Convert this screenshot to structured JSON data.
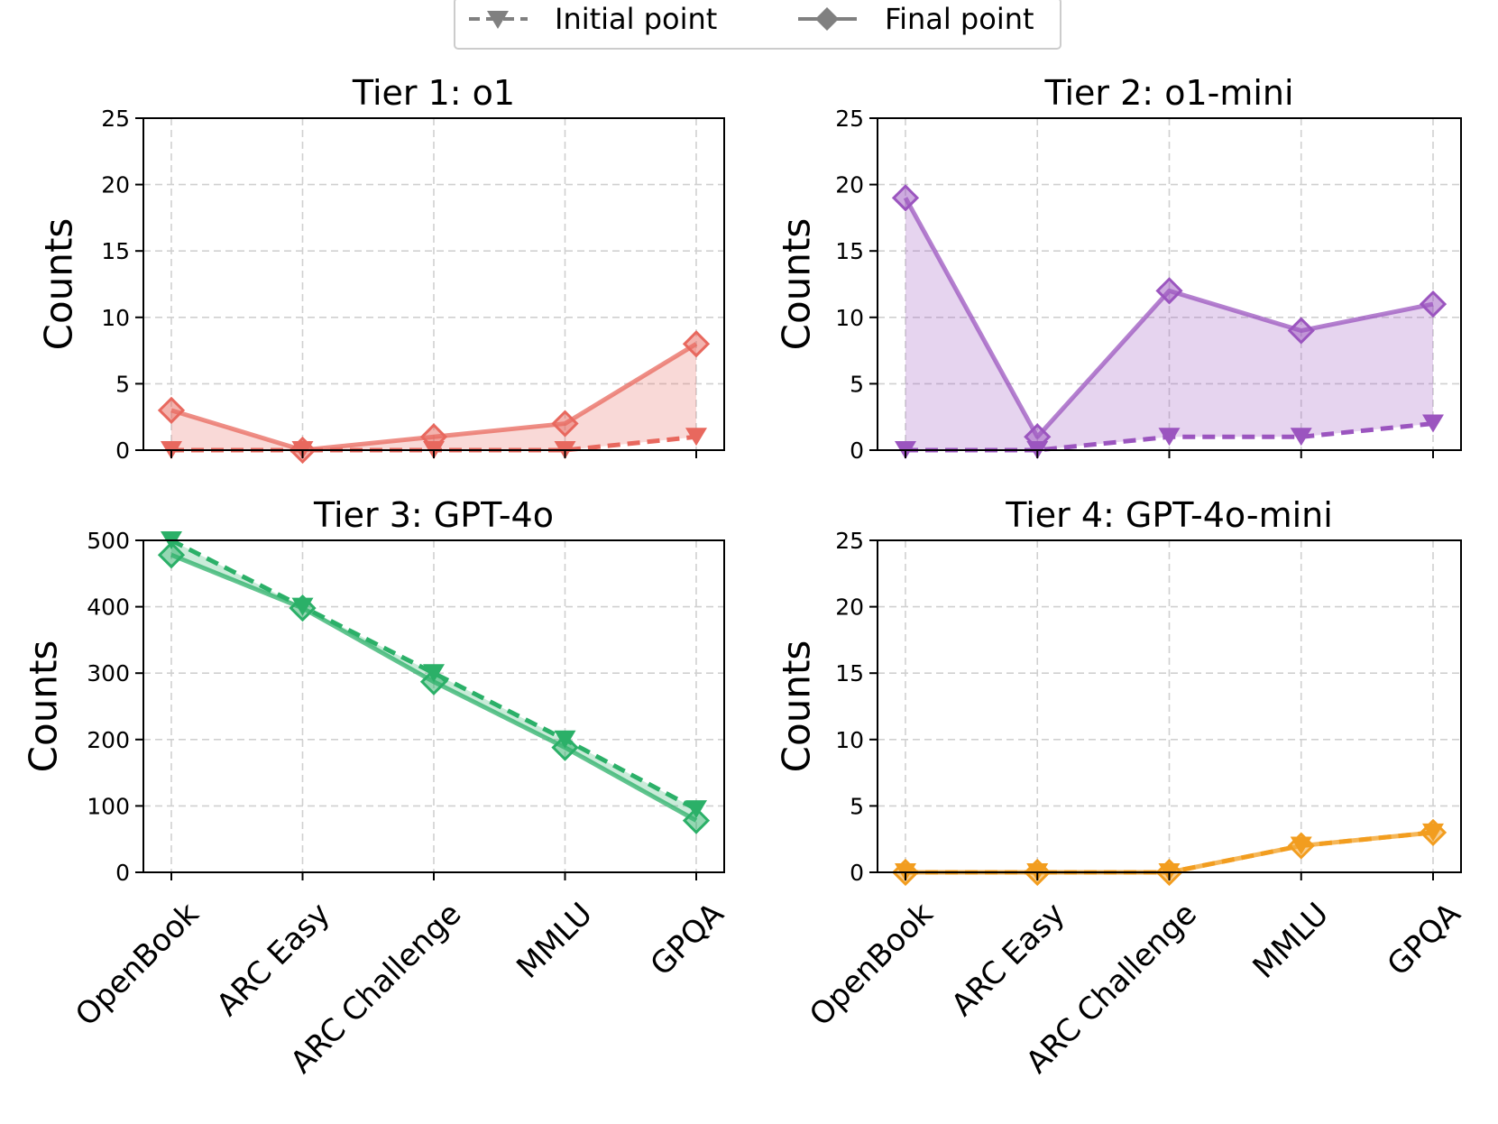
{
  "legend": {
    "placement": "top-center",
    "entries": [
      {
        "label": "Initial point",
        "line_style": "dashed",
        "marker": "triangle-down"
      },
      {
        "label": "Final point",
        "line_style": "solid",
        "marker": "diamond"
      }
    ],
    "color": "#808080"
  },
  "chart_data": [
    {
      "type": "line",
      "title": "Tier 1: o1",
      "xlabel": "",
      "ylabel": "Counts",
      "categories": [
        "OpenBook",
        "ARC Easy",
        "ARC Challenge",
        "MMLU",
        "GPQA"
      ],
      "ylim": [
        0,
        25
      ],
      "yticks": [
        0,
        5,
        10,
        15,
        20,
        25
      ],
      "grid": true,
      "color": "#e8685e",
      "fill_between": true,
      "show_xticklabels": false,
      "series": [
        {
          "name": "Initial point",
          "values": [
            0,
            0,
            0,
            0,
            1
          ]
        },
        {
          "name": "Final point",
          "values": [
            3,
            0,
            1,
            2,
            8
          ]
        }
      ]
    },
    {
      "type": "line",
      "title": "Tier 2: o1-mini",
      "xlabel": "",
      "ylabel": "Counts",
      "categories": [
        "OpenBook",
        "ARC Easy",
        "ARC Challenge",
        "MMLU",
        "GPQA"
      ],
      "ylim": [
        0,
        25
      ],
      "yticks": [
        0,
        5,
        10,
        15,
        20,
        25
      ],
      "grid": true,
      "color": "#9b55bf",
      "fill_between": true,
      "show_xticklabels": false,
      "series": [
        {
          "name": "Initial point",
          "values": [
            0,
            0,
            1,
            1,
            2
          ]
        },
        {
          "name": "Final point",
          "values": [
            19,
            1,
            12,
            9,
            11
          ]
        }
      ]
    },
    {
      "type": "line",
      "title": "Tier 3: GPT-4o",
      "xlabel": "",
      "ylabel": "Counts",
      "categories": [
        "OpenBook",
        "ARC Easy",
        "ARC Challenge",
        "MMLU",
        "GPQA"
      ],
      "ylim": [
        0,
        500
      ],
      "yticks": [
        0,
        100,
        200,
        300,
        400,
        500
      ],
      "grid": true,
      "color": "#2bb068",
      "fill_between": true,
      "show_xticklabels": true,
      "series": [
        {
          "name": "Initial point",
          "values": [
            500,
            400,
            300,
            200,
            95
          ]
        },
        {
          "name": "Final point",
          "values": [
            478,
            398,
            287,
            188,
            78
          ]
        }
      ]
    },
    {
      "type": "line",
      "title": "Tier 4: GPT-4o-mini",
      "xlabel": "",
      "ylabel": "Counts",
      "categories": [
        "OpenBook",
        "ARC Easy",
        "ARC Challenge",
        "MMLU",
        "GPQA"
      ],
      "ylim": [
        0,
        25
      ],
      "yticks": [
        0,
        5,
        10,
        15,
        20,
        25
      ],
      "grid": true,
      "color": "#f29d1f",
      "fill_between": true,
      "show_xticklabels": true,
      "series": [
        {
          "name": "Initial point",
          "values": [
            0,
            0,
            0,
            2,
            3
          ]
        },
        {
          "name": "Final point",
          "values": [
            0,
            0,
            0,
            2,
            3
          ]
        }
      ]
    }
  ]
}
